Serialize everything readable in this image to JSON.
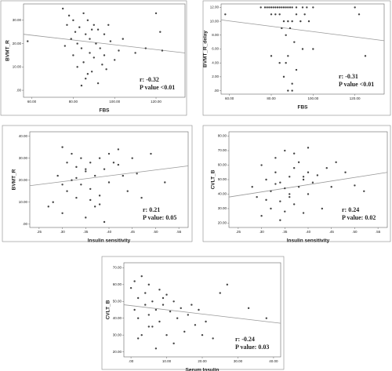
{
  "chart_data": [
    {
      "type": "scatter",
      "x_label": "FBS",
      "y_label": "BVMT_R",
      "color": "#444",
      "line_color": "#999",
      "annotations": [
        "r: -0.32",
        "P value <0.01"
      ],
      "xlim": [
        56,
        134
      ],
      "ylim": [
        -3,
        37
      ],
      "xticks": [
        {
          "value": 60,
          "label": "60.00"
        },
        {
          "value": 80,
          "label": "80.00"
        },
        {
          "value": 100,
          "label": "100.00"
        },
        {
          "value": 120,
          "label": "120.00"
        }
      ],
      "yticks": [
        {
          "value": 0,
          "label": ".00"
        },
        {
          "value": 10,
          "label": "10.00"
        },
        {
          "value": 20,
          "label": "20.00"
        },
        {
          "value": 30,
          "label": "30.00"
        }
      ],
      "x": [
        75,
        77,
        78,
        79,
        80,
        80,
        81,
        82,
        82,
        83,
        84,
        85,
        85,
        86,
        86,
        87,
        88,
        88,
        89,
        90,
        90,
        91,
        92,
        92,
        93,
        94,
        95,
        96,
        97,
        98,
        100,
        102,
        104,
        110,
        115,
        120,
        122,
        123,
        58,
        76,
        84,
        89,
        95,
        87
      ],
      "y": [
        35,
        28,
        32,
        22,
        30,
        15,
        25,
        10,
        20,
        27,
        18,
        33,
        12,
        24,
        5,
        30,
        16,
        22,
        8,
        28,
        14,
        20,
        26,
        3,
        18,
        11,
        24,
        9,
        28,
        21,
        13,
        17,
        22,
        16,
        18,
        33,
        25,
        17,
        21,
        19,
        2,
        26,
        15,
        7
      ],
      "fit": {
        "x": [
          56,
          134
        ],
        "y": [
          24,
          16
        ]
      }
    },
    {
      "type": "scatter",
      "x_label": "FBS",
      "y_label": "BVMT_R_delay",
      "color": "#444",
      "line_color": "#999",
      "annotations": [
        "r:  -0.31",
        "P value <0.01"
      ],
      "xlim": [
        56,
        134
      ],
      "ylim": [
        -0.5,
        12.5
      ],
      "xticks": [
        {
          "value": 60,
          "label": "60.00"
        },
        {
          "value": 80,
          "label": "80.00"
        },
        {
          "value": 100,
          "label": "100.00"
        },
        {
          "value": 120,
          "label": "120.00"
        }
      ],
      "yticks": [
        {
          "value": 0,
          "label": ".00"
        },
        {
          "value": 2,
          "label": "2.00"
        },
        {
          "value": 4,
          "label": "4.00"
        },
        {
          "value": 6,
          "label": "6.00"
        },
        {
          "value": 8,
          "label": "8.00"
        },
        {
          "value": 10,
          "label": "10.00"
        },
        {
          "value": 12,
          "label": "12.00"
        }
      ],
      "x": [
        58,
        75,
        77,
        78,
        79,
        80,
        81,
        82,
        83,
        84,
        85,
        86,
        87,
        88,
        89,
        90,
        92,
        95,
        97,
        100,
        80,
        82,
        84,
        86,
        88,
        90,
        92,
        94,
        96,
        98,
        85,
        87,
        89,
        91,
        80,
        84,
        88,
        92,
        86,
        90,
        95,
        100,
        120,
        122,
        125,
        88,
        90,
        87
      ],
      "y": [
        11,
        12,
        12,
        12,
        12,
        12,
        12,
        12,
        12,
        12,
        12,
        12,
        12,
        12,
        12,
        12,
        12,
        12,
        12,
        12,
        11,
        11,
        11,
        10,
        10,
        10,
        11,
        10,
        11,
        10,
        9,
        8,
        9,
        7,
        5,
        4,
        5,
        3,
        2,
        1,
        6,
        6,
        12,
        11,
        5,
        0,
        0,
        4
      ],
      "fit": {
        "x": [
          56,
          134
        ],
        "y": [
          10.2,
          7.2
        ]
      }
    },
    {
      "type": "scatter",
      "x_label": "Insulin sensitivity",
      "y_label": "BVMT_R",
      "color": "#444",
      "line_color": "#999",
      "annotations": [
        "r: 0.21",
        "P value: 0.05"
      ],
      "xlim": [
        0.23,
        0.57
      ],
      "ylim": [
        -1.5,
        42
      ],
      "xticks": [
        {
          "value": 0.25,
          "label": ".25"
        },
        {
          "value": 0.3,
          "label": ".30"
        },
        {
          "value": 0.35,
          "label": ".35"
        },
        {
          "value": 0.4,
          "label": ".40"
        },
        {
          "value": 0.45,
          "label": ".45"
        },
        {
          "value": 0.5,
          "label": ".50"
        },
        {
          "value": 0.55,
          "label": ".55"
        }
      ],
      "yticks": [
        {
          "value": 0,
          "label": ".00"
        },
        {
          "value": 10,
          "label": "10.00"
        },
        {
          "value": 20,
          "label": "20.00"
        },
        {
          "value": 30,
          "label": "30.00"
        },
        {
          "value": 40,
          "label": "40.00"
        }
      ],
      "x": [
        0.27,
        0.28,
        0.29,
        0.3,
        0.3,
        0.31,
        0.31,
        0.32,
        0.32,
        0.33,
        0.33,
        0.34,
        0.34,
        0.35,
        0.35,
        0.36,
        0.36,
        0.37,
        0.37,
        0.38,
        0.38,
        0.39,
        0.39,
        0.4,
        0.4,
        0.41,
        0.42,
        0.43,
        0.44,
        0.45,
        0.46,
        0.47,
        0.49,
        0.52,
        0.3,
        0.33,
        0.35,
        0.38,
        0.42,
        0.36
      ],
      "y": [
        8,
        10,
        22,
        35,
        5,
        28,
        15,
        32,
        20,
        26,
        12,
        30,
        18,
        24,
        3,
        28,
        16,
        22,
        8,
        30,
        13,
        25,
        1,
        32,
        19,
        28,
        34,
        22,
        15,
        30,
        23,
        12,
        32,
        19,
        18,
        21,
        25,
        9,
        27,
        11
      ],
      "fit": {
        "x": [
          0.23,
          0.57
        ],
        "y": [
          17.5,
          26.5
        ]
      }
    },
    {
      "type": "scatter",
      "x_label": "Insulin sensitivity",
      "y_label": "CVLT_B",
      "color": "#444",
      "line_color": "#999",
      "annotations": [
        "r: 0.24",
        "P value: 0.02"
      ],
      "xlim": [
        0.23,
        0.57
      ],
      "ylim": [
        17,
        83
      ],
      "xticks": [
        {
          "value": 0.25,
          "label": ".25"
        },
        {
          "value": 0.3,
          "label": ".30"
        },
        {
          "value": 0.35,
          "label": ".35"
        },
        {
          "value": 0.4,
          "label": ".40"
        },
        {
          "value": 0.45,
          "label": ".45"
        },
        {
          "value": 0.5,
          "label": ".50"
        },
        {
          "value": 0.55,
          "label": ".55"
        }
      ],
      "yticks": [
        {
          "value": 20,
          "label": "20.00"
        },
        {
          "value": 30,
          "label": "30.00"
        },
        {
          "value": 40,
          "label": "40.00"
        },
        {
          "value": 50,
          "label": "50.00"
        },
        {
          "value": 60,
          "label": "60.00"
        },
        {
          "value": 70,
          "label": "70.00"
        },
        {
          "value": 80,
          "label": "80.00"
        }
      ],
      "x": [
        0.28,
        0.29,
        0.3,
        0.3,
        0.31,
        0.32,
        0.32,
        0.33,
        0.33,
        0.34,
        0.34,
        0.35,
        0.35,
        0.36,
        0.36,
        0.37,
        0.37,
        0.38,
        0.38,
        0.39,
        0.39,
        0.4,
        0.4,
        0.41,
        0.42,
        0.43,
        0.44,
        0.45,
        0.46,
        0.48,
        0.5,
        0.52,
        0.31,
        0.34,
        0.37,
        0.4,
        0.33,
        0.36,
        0.39,
        0.35
      ],
      "y": [
        45,
        38,
        60,
        25,
        50,
        42,
        30,
        55,
        65,
        35,
        48,
        70,
        28,
        52,
        40,
        58,
        33,
        62,
        45,
        50,
        27,
        55,
        40,
        48,
        53,
        30,
        58,
        45,
        62,
        55,
        46,
        42,
        36,
        22,
        68,
        72,
        47,
        38,
        52,
        44
      ],
      "fit": {
        "x": [
          0.23,
          0.57
        ],
        "y": [
          38,
          55
        ]
      }
    },
    {
      "type": "scatter",
      "x_label": "Serum Insulin",
      "y_label": "CVLT_B",
      "color": "#444",
      "line_color": "#999",
      "annotations": [
        "r: -0.24",
        "P value: 0.03"
      ],
      "xlim": [
        -2,
        42
      ],
      "ylim": [
        17,
        73
      ],
      "xticks": [
        {
          "value": 0,
          "label": ".00"
        },
        {
          "value": 10,
          "label": "10.00"
        },
        {
          "value": 20,
          "label": "20.00"
        },
        {
          "value": 30,
          "label": "30.00"
        },
        {
          "value": 40,
          "label": "40.00"
        }
      ],
      "yticks": [
        {
          "value": 20,
          "label": "20.00"
        },
        {
          "value": 30,
          "label": "30.00"
        },
        {
          "value": 40,
          "label": "40.00"
        },
        {
          "value": 50,
          "label": "50.00"
        },
        {
          "value": 60,
          "label": "60.00"
        },
        {
          "value": 70,
          "label": "70.00"
        }
      ],
      "x": [
        0,
        1,
        1,
        2,
        2,
        3,
        3,
        4,
        4,
        5,
        5,
        6,
        6,
        7,
        7,
        8,
        8,
        9,
        10,
        10,
        11,
        12,
        12,
        13,
        14,
        15,
        16,
        17,
        18,
        19,
        20,
        21,
        23,
        25,
        27,
        33,
        38,
        2,
        5,
        9
      ],
      "y": [
        58,
        45,
        62,
        40,
        52,
        65,
        30,
        48,
        55,
        42,
        60,
        35,
        50,
        22,
        45,
        57,
        38,
        48,
        30,
        54,
        44,
        25,
        50,
        40,
        46,
        32,
        42,
        48,
        36,
        45,
        30,
        38,
        28,
        55,
        60,
        46,
        40,
        28,
        35,
        52
      ],
      "fit": {
        "x": [
          -2,
          42
        ],
        "y": [
          48,
          37
        ]
      }
    }
  ]
}
